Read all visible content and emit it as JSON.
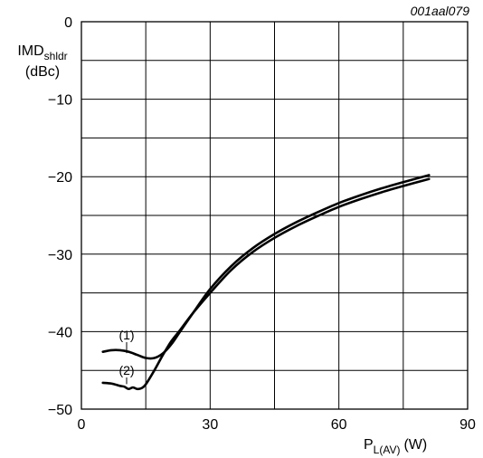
{
  "chart_data": {
    "type": "line",
    "reference_code": "001aal079",
    "ylabel_main": "IMD",
    "ylabel_sub": "shldr",
    "ylabel_unit": "(dBc)",
    "xlabel_main": "P",
    "xlabel_sub": "L(AV)",
    "xlabel_unit": "(W)",
    "xlim": [
      0,
      90
    ],
    "ylim": [
      -50,
      0
    ],
    "x_ticks": [
      0,
      30,
      60,
      90
    ],
    "x_tick_labels": [
      "0",
      "30",
      "60",
      "90"
    ],
    "y_ticks": [
      0,
      -10,
      -20,
      -30,
      -40,
      -50
    ],
    "y_tick_labels": [
      "0",
      "−10",
      "−20",
      "−30",
      "−40",
      "−50"
    ],
    "grid": true,
    "grid_x_step": 15,
    "grid_y_step": 5,
    "series": [
      {
        "name": "(1)",
        "x": [
          5,
          7,
          9,
          11,
          13,
          15,
          17,
          19,
          21,
          23,
          26,
          30,
          35,
          40,
          45,
          50,
          55,
          60,
          65,
          70,
          75,
          81
        ],
        "y": [
          -42.6,
          -42.4,
          -42.4,
          -42.6,
          -43.0,
          -43.4,
          -43.4,
          -42.8,
          -41.6,
          -40.0,
          -37.6,
          -34.5,
          -31.5,
          -29.2,
          -27.4,
          -25.9,
          -24.6,
          -23.4,
          -22.4,
          -21.5,
          -20.7,
          -19.8
        ]
      },
      {
        "name": "(2)",
        "x": [
          5,
          7,
          9,
          10,
          11,
          12,
          13,
          14,
          15,
          17,
          19,
          21,
          23,
          26,
          30,
          35,
          40,
          45,
          50,
          55,
          60,
          65,
          70,
          75,
          81
        ],
        "y": [
          -46.6,
          -46.7,
          -47.0,
          -47.1,
          -47.4,
          -47.2,
          -47.4,
          -47.3,
          -46.8,
          -45.0,
          -43.0,
          -41.2,
          -39.8,
          -37.6,
          -35.0,
          -32.0,
          -29.7,
          -27.9,
          -26.4,
          -25.1,
          -23.9,
          -22.9,
          -22.0,
          -21.2,
          -20.3
        ]
      }
    ]
  }
}
